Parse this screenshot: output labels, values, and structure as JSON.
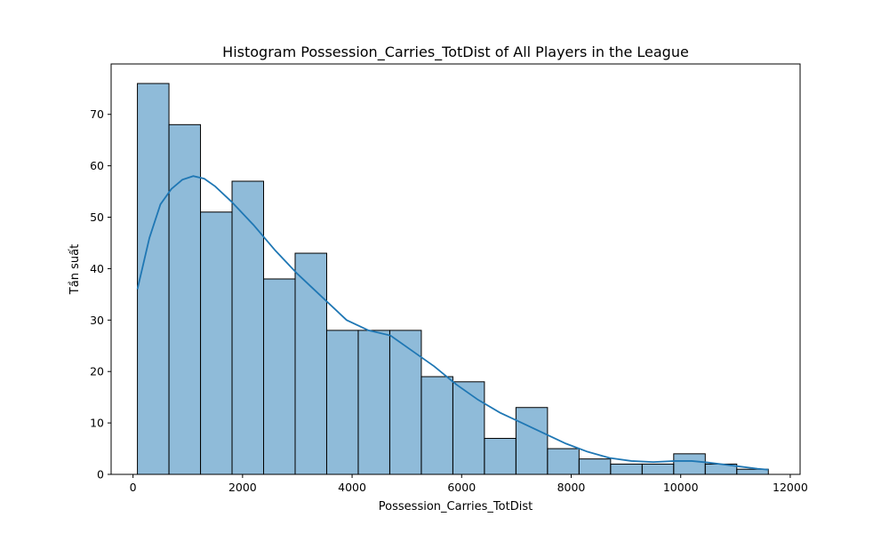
{
  "chart_data": {
    "type": "bar",
    "title": "Histogram Possession_Carries_TotDist of All Players in the League",
    "xlabel": "Possession_Carries_TotDist",
    "ylabel": "Tần suất",
    "bins": [
      {
        "x0": 80,
        "x1": 656,
        "count": 76
      },
      {
        "x0": 656,
        "x1": 1232,
        "count": 68
      },
      {
        "x0": 1232,
        "x1": 1808,
        "count": 51
      },
      {
        "x0": 1808,
        "x1": 2384,
        "count": 57
      },
      {
        "x0": 2384,
        "x1": 2960,
        "count": 38
      },
      {
        "x0": 2960,
        "x1": 3536,
        "count": 43
      },
      {
        "x0": 3536,
        "x1": 4112,
        "count": 28
      },
      {
        "x0": 4112,
        "x1": 4688,
        "count": 28
      },
      {
        "x0": 4688,
        "x1": 5264,
        "count": 28
      },
      {
        "x0": 5264,
        "x1": 5840,
        "count": 19
      },
      {
        "x0": 5840,
        "x1": 6416,
        "count": 18
      },
      {
        "x0": 6416,
        "x1": 6992,
        "count": 7
      },
      {
        "x0": 6992,
        "x1": 7568,
        "count": 13
      },
      {
        "x0": 7568,
        "x1": 8144,
        "count": 5
      },
      {
        "x0": 8144,
        "x1": 8720,
        "count": 3
      },
      {
        "x0": 8720,
        "x1": 9296,
        "count": 2
      },
      {
        "x0": 9296,
        "x1": 9872,
        "count": 2
      },
      {
        "x0": 9872,
        "x1": 10448,
        "count": 4
      },
      {
        "x0": 10448,
        "x1": 11024,
        "count": 2
      },
      {
        "x0": 11024,
        "x1": 11600,
        "count": 1
      }
    ],
    "kde": {
      "x": [
        80,
        300,
        500,
        700,
        900,
        1100,
        1300,
        1500,
        1800,
        2200,
        2600,
        3000,
        3500,
        3900,
        4300,
        4700,
        5100,
        5500,
        5900,
        6300,
        6700,
        7100,
        7500,
        7900,
        8300,
        8700,
        9100,
        9500,
        9900,
        10200,
        10500,
        10800,
        11100,
        11400,
        11600
      ],
      "y": [
        36,
        46,
        52.5,
        55.5,
        57.3,
        58,
        57.5,
        56,
        53,
        48.5,
        43.5,
        39,
        34,
        30,
        28,
        27,
        24,
        21,
        17.5,
        14.5,
        12,
        10,
        8,
        6,
        4.4,
        3.2,
        2.6,
        2.4,
        2.6,
        2.6,
        2.3,
        1.9,
        1.5,
        1.1,
        0.9
      ]
    },
    "xlim": [
      -400,
      12180
    ],
    "ylim": [
      0,
      79.8
    ],
    "xticks": [
      0,
      2000,
      4000,
      6000,
      8000,
      10000,
      12000
    ],
    "yticks": [
      0,
      10,
      20,
      30,
      40,
      50,
      60,
      70
    ],
    "grid": false,
    "colors": {
      "bar_fill": "#1f77b4",
      "bar_fill_opacity": 0.5,
      "bar_edge": "#000000",
      "kde_line": "#1f77b4"
    }
  }
}
